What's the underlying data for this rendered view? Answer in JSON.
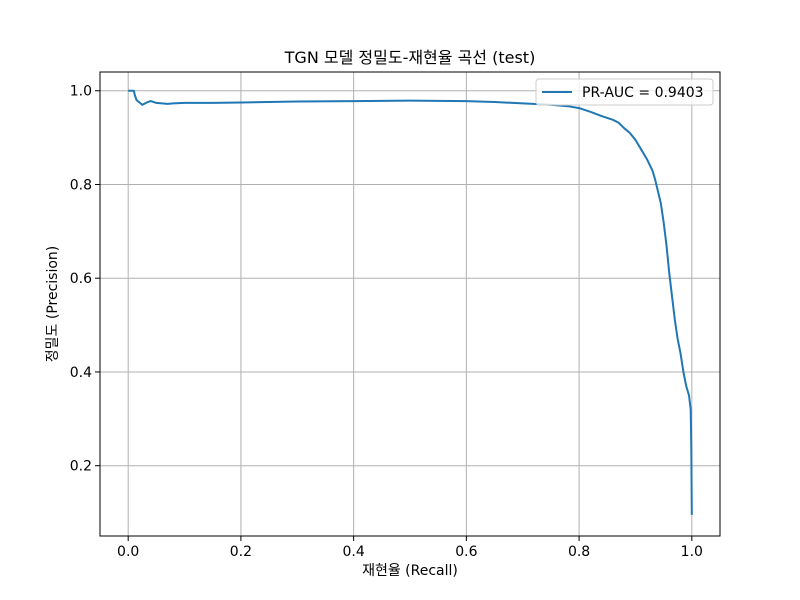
{
  "chart_data": {
    "type": "line",
    "title": "TGN 모델 정밀도-재현율 곡선 (test)",
    "xlabel": "재현율 (Recall)",
    "ylabel": "정밀도 (Precision)",
    "xlim": [
      -0.05,
      1.05
    ],
    "ylim": [
      0.05,
      1.04
    ],
    "xticks": [
      0.0,
      0.2,
      0.4,
      0.6,
      0.8,
      1.0
    ],
    "xtick_labels": [
      "0.0",
      "0.2",
      "0.4",
      "0.6",
      "0.8",
      "1.0"
    ],
    "yticks": [
      0.2,
      0.4,
      0.6,
      0.8,
      1.0
    ],
    "ytick_labels": [
      "0.2",
      "0.4",
      "0.6",
      "0.8",
      "1.0"
    ],
    "grid": true,
    "legend_position": "upper right",
    "series": [
      {
        "name": "PR-AUC = 0.9403",
        "color": "#1f77b4",
        "x": [
          0.0,
          0.005,
          0.01,
          0.012,
          0.015,
          0.02,
          0.025,
          0.03,
          0.035,
          0.04,
          0.05,
          0.06,
          0.07,
          0.08,
          0.1,
          0.15,
          0.2,
          0.3,
          0.4,
          0.5,
          0.6,
          0.65,
          0.7,
          0.75,
          0.78,
          0.8,
          0.82,
          0.84,
          0.86,
          0.87,
          0.88,
          0.89,
          0.9,
          0.91,
          0.92,
          0.93,
          0.935,
          0.94,
          0.945,
          0.95,
          0.955,
          0.96,
          0.965,
          0.97,
          0.975,
          0.98,
          0.985,
          0.99,
          0.995,
          0.998,
          0.999,
          1.0
        ],
        "y": [
          1.0,
          1.0,
          1.0,
          0.99,
          0.98,
          0.975,
          0.97,
          0.973,
          0.976,
          0.978,
          0.974,
          0.973,
          0.972,
          0.973,
          0.974,
          0.974,
          0.975,
          0.977,
          0.978,
          0.979,
          0.978,
          0.976,
          0.973,
          0.97,
          0.967,
          0.963,
          0.955,
          0.946,
          0.938,
          0.932,
          0.92,
          0.91,
          0.895,
          0.875,
          0.855,
          0.83,
          0.81,
          0.785,
          0.76,
          0.72,
          0.67,
          0.61,
          0.56,
          0.51,
          0.47,
          0.44,
          0.4,
          0.37,
          0.35,
          0.32,
          0.24,
          0.095
        ]
      }
    ]
  }
}
